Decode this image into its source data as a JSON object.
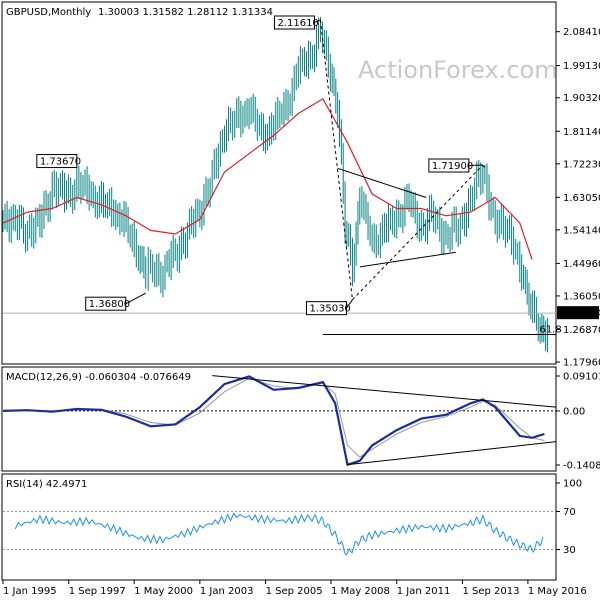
{
  "header": {
    "symbol": "GBPUSD,Monthly",
    "ohlc": "1.30003 1.31582 1.28112 1.31334"
  },
  "watermark": "ActionForex.com",
  "colors": {
    "background": "#ffffff",
    "candles": "#008080",
    "moving_average": "#e0202a",
    "macd_line": "#1a2d9c",
    "macd_signal": "#9a9a9a",
    "rsi_line": "#1e90ff",
    "pattern_lines": "#000000",
    "watermark": "#c8c8c8"
  },
  "chart_data": [
    {
      "type": "line",
      "panel": "price",
      "price_scale": [
        "2.08410",
        "1.99130",
        "1.90320",
        "1.81140",
        "1.72230",
        "1.63050",
        "1.54140",
        "1.44960",
        "1.36050",
        "1.26870",
        "1.17960"
      ],
      "last_price_label": "1.31334",
      "x_axis_labels": [
        "1 Jan 1995",
        "1 Sep 1997",
        "1 May 2000",
        "1 Jan 2003",
        "1 Sep 2005",
        "1 May 2008",
        "1 Jan 2011",
        "1 Sep 2013",
        "1 May 2016"
      ],
      "annotations": [
        {
          "label": "1.73670",
          "year": 1998.0,
          "price": 1.7367
        },
        {
          "label": "1.36800",
          "year": 2000.8,
          "price": 1.368
        },
        {
          "label": "2.11610",
          "year": 2007.9,
          "price": 2.1161
        },
        {
          "label": "1.35030",
          "year": 2009.2,
          "price": 1.3503
        },
        {
          "label": "1.71900",
          "year": 2014.5,
          "price": 1.719
        }
      ],
      "fib_label": "61.8",
      "fib_level": 1.255,
      "series": [
        {
          "kind": "candles",
          "x": [
            1995.0,
            1995.5,
            1996.0,
            1996.5,
            1997.0,
            1997.5,
            1998.0,
            1998.5,
            1999.0,
            1999.5,
            2000.0,
            2000.5,
            2000.8,
            2001.0,
            2001.5,
            2002.0,
            2002.5,
            2003.0,
            2003.5,
            2004.0,
            2004.5,
            2005.0,
            2005.5,
            2006.0,
            2006.5,
            2007.0,
            2007.5,
            2007.9,
            2008.3,
            2008.6,
            2008.9,
            2009.2,
            2009.5,
            2010.0,
            2010.5,
            2011.0,
            2011.5,
            2012.0,
            2012.5,
            2013.0,
            2013.5,
            2014.0,
            2014.5,
            2015.0,
            2015.5,
            2016.0,
            2016.3,
            2016.6,
            2016.9,
            2017.2
          ],
          "values": [
            1.58,
            1.56,
            1.54,
            1.56,
            1.66,
            1.64,
            1.66,
            1.65,
            1.61,
            1.6,
            1.55,
            1.48,
            1.42,
            1.44,
            1.42,
            1.48,
            1.53,
            1.6,
            1.68,
            1.82,
            1.84,
            1.88,
            1.8,
            1.83,
            1.88,
            1.98,
            2.02,
            2.08,
            1.98,
            1.88,
            1.55,
            1.45,
            1.63,
            1.51,
            1.54,
            1.58,
            1.62,
            1.55,
            1.58,
            1.52,
            1.55,
            1.62,
            1.71,
            1.55,
            1.56,
            1.43,
            1.38,
            1.31,
            1.24,
            1.29
          ]
        },
        {
          "kind": "moving_average",
          "x": [
            1995.0,
            1996.0,
            1997.0,
            1998.0,
            1999.0,
            2000.0,
            2001.0,
            2002.0,
            2003.0,
            2004.0,
            2005.0,
            2006.0,
            2007.0,
            2008.0,
            2009.0,
            2010.0,
            2011.0,
            2012.0,
            2013.0,
            2014.0,
            2015.0,
            2016.0,
            2016.5
          ],
          "values": [
            1.56,
            1.59,
            1.6,
            1.63,
            1.61,
            1.58,
            1.54,
            1.53,
            1.57,
            1.7,
            1.75,
            1.8,
            1.86,
            1.9,
            1.78,
            1.64,
            1.6,
            1.6,
            1.58,
            1.59,
            1.63,
            1.56,
            1.46
          ]
        }
      ]
    },
    {
      "type": "line",
      "panel": "macd",
      "label": "MACD(12,26,9) -0.060304 -0.076649",
      "scale": [
        "0.091015",
        "0.00",
        "-0.140843"
      ],
      "series": [
        {
          "kind": "macd",
          "x": [
            1995.0,
            1996.0,
            1997.0,
            1998.0,
            1999.0,
            2000.0,
            2001.0,
            2002.0,
            2003.0,
            2004.0,
            2005.0,
            2006.0,
            2007.0,
            2008.0,
            2008.5,
            2009.0,
            2009.5,
            2010.0,
            2011.0,
            2012.0,
            2013.0,
            2014.0,
            2014.5,
            2015.0,
            2016.0,
            2016.5,
            2017.0
          ],
          "values": [
            0.0,
            0.002,
            -0.002,
            0.005,
            0.003,
            -0.015,
            -0.04,
            -0.035,
            0.01,
            0.07,
            0.09,
            0.055,
            0.06,
            0.075,
            0.02,
            -0.14,
            -0.13,
            -0.09,
            -0.05,
            -0.02,
            -0.01,
            0.02,
            0.03,
            0.01,
            -0.065,
            -0.07,
            -0.06
          ]
        },
        {
          "kind": "signal",
          "x": [
            1995.0,
            1996.0,
            1997.0,
            1998.0,
            1999.0,
            2000.0,
            2001.0,
            2002.0,
            2003.0,
            2004.0,
            2005.0,
            2006.0,
            2007.0,
            2008.0,
            2008.5,
            2009.0,
            2009.5,
            2010.0,
            2011.0,
            2012.0,
            2013.0,
            2014.0,
            2014.5,
            2015.0,
            2016.0,
            2016.5,
            2017.0
          ],
          "values": [
            0.0,
            0.002,
            -0.0,
            0.003,
            0.004,
            -0.008,
            -0.03,
            -0.037,
            -0.005,
            0.05,
            0.085,
            0.065,
            0.058,
            0.072,
            0.045,
            -0.09,
            -0.12,
            -0.1,
            -0.06,
            -0.03,
            -0.015,
            0.01,
            0.025,
            0.015,
            -0.045,
            -0.07,
            -0.077
          ]
        }
      ]
    },
    {
      "type": "line",
      "panel": "rsi",
      "label": "RSI(14) 42.4971",
      "scale": [
        "100",
        "70",
        "30",
        "0"
      ],
      "series": [
        {
          "kind": "rsi",
          "x": [
            1995.5,
            1996.5,
            1997.5,
            1998.5,
            1999.5,
            2000.5,
            2001.5,
            2002.5,
            2003.5,
            2004.5,
            2005.5,
            2006.5,
            2007.5,
            2008.0,
            2008.5,
            2009.0,
            2009.5,
            2010.0,
            2011.0,
            2012.0,
            2013.0,
            2014.0,
            2014.5,
            2015.0,
            2015.5,
            2016.0,
            2016.5,
            2017.0
          ],
          "values": [
            55,
            62,
            58,
            60,
            52,
            42,
            40,
            48,
            58,
            66,
            62,
            60,
            64,
            60,
            45,
            25,
            40,
            45,
            50,
            54,
            52,
            58,
            62,
            50,
            42,
            35,
            30,
            42
          ]
        }
      ]
    }
  ]
}
